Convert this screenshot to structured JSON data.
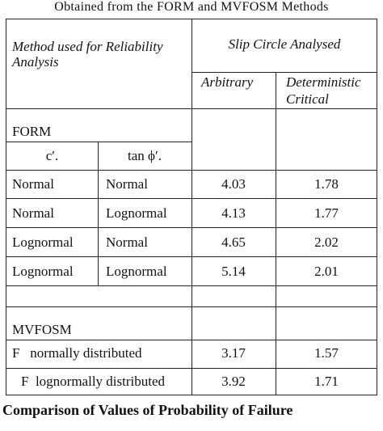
{
  "top_title": "Obtained from the FORM and MVFOSM Methods",
  "header": {
    "method_label": "Method used for Reliability Analysis",
    "method_line1": "Method used for Reliability",
    "method_line2": "Analysis",
    "slip_label": "Slip Circle Analysed",
    "arbitrary": "Arbitrary",
    "det_line1": "Deterministic",
    "det_line2": "Critical"
  },
  "form_section": {
    "label": "FORM",
    "c_label": "c′.",
    "tan_label": "tan ϕ′.",
    "rows": [
      {
        "c": "Normal",
        "tan": "Normal",
        "arbitrary": "4.03",
        "critical": "1.78"
      },
      {
        "c": "Normal",
        "tan": "Lognormal",
        "arbitrary": "4.13",
        "critical": "1.77"
      },
      {
        "c": "Lognormal",
        "tan": "Normal",
        "arbitrary": "4.65",
        "critical": "2.02"
      },
      {
        "c": "Lognormal",
        "tan": "Lognormal",
        "arbitrary": "5.14",
        "critical": "2.01"
      }
    ]
  },
  "mvfosm_section": {
    "label": "MVFOSM",
    "rows": [
      {
        "label": "F   normally distributed",
        "arbitrary": "3.17",
        "critical": "1.57"
      },
      {
        "label": "F  lognormally distributed",
        "arbitrary": "3.92",
        "critical": "1.71"
      }
    ]
  },
  "caption": "Comparison of Values of Probability of Failure"
}
